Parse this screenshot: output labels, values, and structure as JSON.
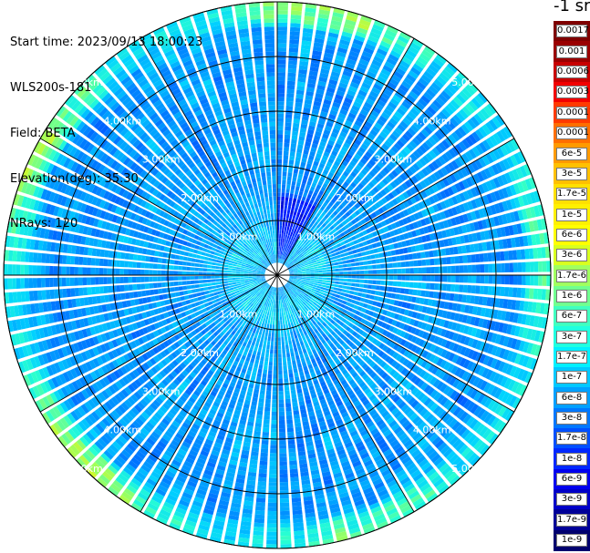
{
  "header": {
    "start_time": "Start time: 2023/09/13 18:00:23",
    "instrument": "WLS200s-181",
    "field": "Field: BETA",
    "elevation": "Elevation(deg): 35.30",
    "nrays": "NRays: 120"
  },
  "colorbar": {
    "unit": "-1 sr",
    "labels": [
      "0.0017",
      "0.001",
      "0.0006",
      "0.0003",
      "0.00017",
      "0.0001",
      "6e-5",
      "3e-5",
      "1.7e-5",
      "1e-5",
      "6e-6",
      "3e-6",
      "1.7e-6",
      "1e-6",
      "6e-7",
      "3e-7",
      "1.7e-7",
      "1e-7",
      "6e-8",
      "3e-8",
      "1.7e-8",
      "1e-8",
      "6e-9",
      "3e-9",
      "1.7e-9",
      "1e-9"
    ],
    "colors": [
      "#7f0000",
      "#9a0000",
      "#c80000",
      "#f20000",
      "#ff3a00",
      "#ff6e00",
      "#ff9a00",
      "#ffc000",
      "#ffe000",
      "#fff000",
      "#ffff00",
      "#d8ff20",
      "#a0ff60",
      "#70ff90",
      "#40ffc0",
      "#20ffe0",
      "#00f0ff",
      "#00c8ff",
      "#00a0ff",
      "#0078ff",
      "#0050ff",
      "#0028ff",
      "#0000ee",
      "#0000c8",
      "#000098",
      "#00006e"
    ]
  },
  "chart_data": {
    "type": "heatmap",
    "projection": "polar (plan position indicator)",
    "field": "BETA",
    "rays": 120,
    "range_rings": [
      "1.00km",
      "2.00km",
      "3.00km",
      "4.00km",
      "5.00km"
    ],
    "r_max_km": 5.0,
    "radial_lines_deg": [
      0,
      30,
      60,
      90,
      120,
      150,
      180,
      210,
      240,
      270,
      300,
      330
    ],
    "dominant_level": "1e-7",
    "outer_ring_level": "1e-6",
    "colorscale": "jet, logarithmic"
  }
}
